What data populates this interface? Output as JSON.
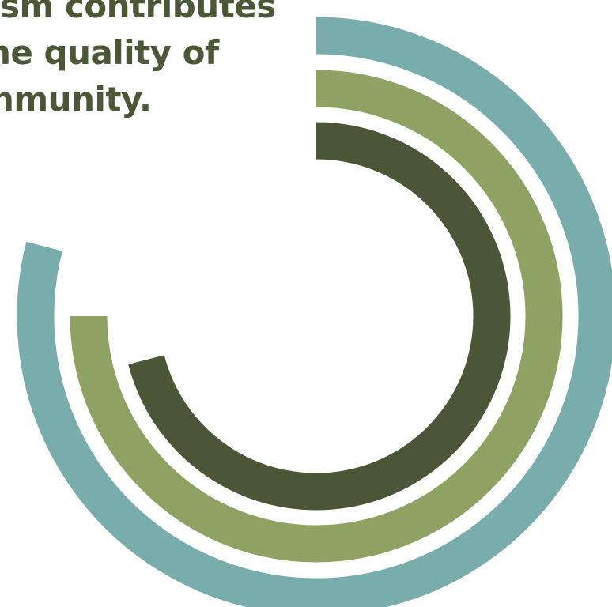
{
  "headline": {
    "line1": "sm contributes",
    "line2": "he quality of",
    "line3": "nmunity."
  },
  "colors": {
    "text": "#4a5838",
    "outer_ring": "#78adab",
    "middle_ring": "#8ea263",
    "inner_ring": "#4a5636",
    "background": "#ffffff"
  },
  "chart_data": {
    "type": "radial-bar",
    "title": "",
    "max": 100,
    "start": "top (12 o'clock)",
    "direction": "clockwise",
    "series": [
      {
        "value": 79,
        "color": "#78adab"
      },
      {
        "value": 75,
        "color": "#8ea263"
      },
      {
        "value": 71,
        "color": "#4a5636"
      }
    ]
  }
}
